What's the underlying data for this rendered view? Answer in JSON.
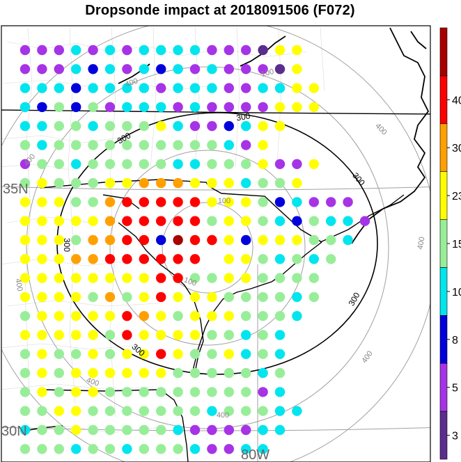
{
  "title": "Dropsonde impact at 2018091506 (F072)",
  "colorbar": {
    "levels": [
      0,
      3,
      5,
      8,
      10,
      15,
      23,
      30,
      40,
      50
    ],
    "labels": [
      "3",
      "5",
      "8",
      "10",
      "15",
      "23",
      "30",
      "40"
    ],
    "colors": [
      "#5b2d8e",
      "#a733e6",
      "#0000dd",
      "#00e5ee",
      "#98ee98",
      "#ffff00",
      "#ffa000",
      "#ff0000",
      "#a80000"
    ]
  },
  "map_labels": {
    "lat_35": "35N",
    "lat_30": "30N",
    "lon_80": "80W"
  },
  "contours": {
    "black": [
      "300",
      "300",
      "300",
      "300",
      "300",
      "300"
    ],
    "gray": [
      "100",
      "100",
      "100",
      "400",
      "400",
      "400",
      "400",
      "400",
      "400",
      "400",
      "400",
      "400"
    ]
  },
  "dots": {
    "lon_start": 36,
    "lon_step": 24.4,
    "lat_start": 72,
    "lat_step": 27.3,
    "rows": [
      "222c2c2cccc222355",
      "222c1c2c1c2c22235",
      "ccc1cccc2ccc22cc55",
      "c14142ccc2c2222555",
      "cc44c4445c221c55",
      "4c4444444444c25",
      "244c44444cc4445225",
      "4544455666555c445",
      "5554467777755541c222",
      "555556777774554c14cc2",
      "5554667710775155544c",
      "555667777778554c4c4",
      "555555557744554444",
      "5555464575554444c4",
      "4555557654555444c",
      "5555547555544c4c",
      "4544545575445c4c",
      "45455555544444c4",
      "454554444444442c",
      "44554444444c444cc",
      "c44544444c2222cc",
      "444c44c444c22cc",
      "c44c4cc4cc44c2222"
    ]
  }
}
